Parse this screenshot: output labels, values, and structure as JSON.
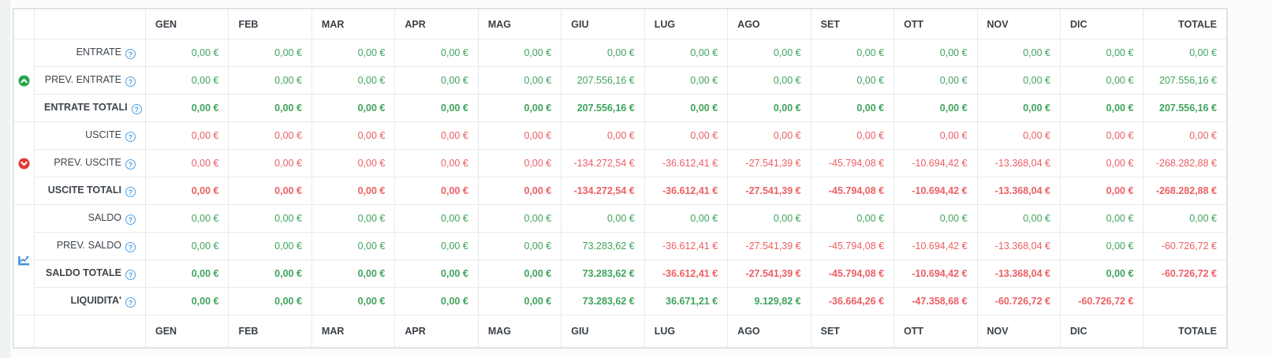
{
  "colors": {
    "positive": "#3fa45c",
    "negative": "#ec5f63",
    "section_up": "#2aa44e",
    "section_down": "#e23b3b",
    "chart_blue": "#3d8fd8",
    "help_blue": "#4b9fe8"
  },
  "columns": [
    "GEN",
    "FEB",
    "MAR",
    "APR",
    "MAG",
    "GIU",
    "LUG",
    "AGO",
    "SET",
    "OTT",
    "NOV",
    "DIC",
    "TOTALE"
  ],
  "help_symbol": "?",
  "sections": [
    {
      "name": "entrate",
      "icon": "arrow-up-circle",
      "rows": [
        {
          "label": "ENTRATE",
          "bold": false,
          "cells": [
            [
              "0,00 €",
              "p"
            ],
            [
              "0,00 €",
              "p"
            ],
            [
              "0,00 €",
              "p"
            ],
            [
              "0,00 €",
              "p"
            ],
            [
              "0,00 €",
              "p"
            ],
            [
              "0,00 €",
              "p"
            ],
            [
              "0,00 €",
              "p"
            ],
            [
              "0,00 €",
              "p"
            ],
            [
              "0,00 €",
              "p"
            ],
            [
              "0,00 €",
              "p"
            ],
            [
              "0,00 €",
              "p"
            ],
            [
              "0,00 €",
              "p"
            ],
            [
              "0,00 €",
              "p"
            ]
          ]
        },
        {
          "label": "PREV. ENTRATE",
          "bold": false,
          "cells": [
            [
              "0,00 €",
              "p"
            ],
            [
              "0,00 €",
              "p"
            ],
            [
              "0,00 €",
              "p"
            ],
            [
              "0,00 €",
              "p"
            ],
            [
              "0,00 €",
              "p"
            ],
            [
              "207.556,16 €",
              "p"
            ],
            [
              "0,00 €",
              "p"
            ],
            [
              "0,00 €",
              "p"
            ],
            [
              "0,00 €",
              "p"
            ],
            [
              "0,00 €",
              "p"
            ],
            [
              "0,00 €",
              "p"
            ],
            [
              "0,00 €",
              "p"
            ],
            [
              "207.556,16 €",
              "p"
            ]
          ]
        },
        {
          "label": "ENTRATE TOTALI",
          "bold": true,
          "cells": [
            [
              "0,00 €",
              "p"
            ],
            [
              "0,00 €",
              "p"
            ],
            [
              "0,00 €",
              "p"
            ],
            [
              "0,00 €",
              "p"
            ],
            [
              "0,00 €",
              "p"
            ],
            [
              "207.556,16 €",
              "p"
            ],
            [
              "0,00 €",
              "p"
            ],
            [
              "0,00 €",
              "p"
            ],
            [
              "0,00 €",
              "p"
            ],
            [
              "0,00 €",
              "p"
            ],
            [
              "0,00 €",
              "p"
            ],
            [
              "0,00 €",
              "p"
            ],
            [
              "207.556,16 €",
              "p"
            ]
          ]
        }
      ]
    },
    {
      "name": "uscite",
      "icon": "arrow-down-circle",
      "rows": [
        {
          "label": "USCITE",
          "bold": false,
          "cells": [
            [
              "0,00 €",
              "n"
            ],
            [
              "0,00 €",
              "n"
            ],
            [
              "0,00 €",
              "n"
            ],
            [
              "0,00 €",
              "n"
            ],
            [
              "0,00 €",
              "n"
            ],
            [
              "0,00 €",
              "n"
            ],
            [
              "0,00 €",
              "n"
            ],
            [
              "0,00 €",
              "n"
            ],
            [
              "0,00 €",
              "n"
            ],
            [
              "0,00 €",
              "n"
            ],
            [
              "0,00 €",
              "n"
            ],
            [
              "0,00 €",
              "n"
            ],
            [
              "0,00 €",
              "n"
            ]
          ]
        },
        {
          "label": "PREV. USCITE",
          "bold": false,
          "cells": [
            [
              "0,00 €",
              "n"
            ],
            [
              "0,00 €",
              "n"
            ],
            [
              "0,00 €",
              "n"
            ],
            [
              "0,00 €",
              "n"
            ],
            [
              "0,00 €",
              "n"
            ],
            [
              "-134.272,54 €",
              "n"
            ],
            [
              "-36.612,41 €",
              "n"
            ],
            [
              "-27.541,39 €",
              "n"
            ],
            [
              "-45.794,08 €",
              "n"
            ],
            [
              "-10.694,42 €",
              "n"
            ],
            [
              "-13.368,04 €",
              "n"
            ],
            [
              "0,00 €",
              "n"
            ],
            [
              "-268.282,88 €",
              "n"
            ]
          ]
        },
        {
          "label": "USCITE TOTALI",
          "bold": true,
          "cells": [
            [
              "0,00 €",
              "n"
            ],
            [
              "0,00 €",
              "n"
            ],
            [
              "0,00 €",
              "n"
            ],
            [
              "0,00 €",
              "n"
            ],
            [
              "0,00 €",
              "n"
            ],
            [
              "-134.272,54 €",
              "n"
            ],
            [
              "-36.612,41 €",
              "n"
            ],
            [
              "-27.541,39 €",
              "n"
            ],
            [
              "-45.794,08 €",
              "n"
            ],
            [
              "-10.694,42 €",
              "n"
            ],
            [
              "-13.368,04 €",
              "n"
            ],
            [
              "0,00 €",
              "n"
            ],
            [
              "-268.282,88 €",
              "n"
            ]
          ]
        }
      ]
    },
    {
      "name": "saldo",
      "icon": "chart-line",
      "rows": [
        {
          "label": "SALDO",
          "bold": false,
          "cells": [
            [
              "0,00 €",
              "p"
            ],
            [
              "0,00 €",
              "p"
            ],
            [
              "0,00 €",
              "p"
            ],
            [
              "0,00 €",
              "p"
            ],
            [
              "0,00 €",
              "p"
            ],
            [
              "0,00 €",
              "p"
            ],
            [
              "0,00 €",
              "p"
            ],
            [
              "0,00 €",
              "p"
            ],
            [
              "0,00 €",
              "p"
            ],
            [
              "0,00 €",
              "p"
            ],
            [
              "0,00 €",
              "p"
            ],
            [
              "0,00 €",
              "p"
            ],
            [
              "0,00 €",
              "p"
            ]
          ]
        },
        {
          "label": "PREV. SALDO",
          "bold": false,
          "cells": [
            [
              "0,00 €",
              "p"
            ],
            [
              "0,00 €",
              "p"
            ],
            [
              "0,00 €",
              "p"
            ],
            [
              "0,00 €",
              "p"
            ],
            [
              "0,00 €",
              "p"
            ],
            [
              "73.283,62 €",
              "p"
            ],
            [
              "-36.612,41 €",
              "n"
            ],
            [
              "-27.541,39 €",
              "n"
            ],
            [
              "-45.794,08 €",
              "n"
            ],
            [
              "-10.694,42 €",
              "n"
            ],
            [
              "-13.368,04 €",
              "n"
            ],
            [
              "0,00 €",
              "p"
            ],
            [
              "-60.726,72 €",
              "n"
            ]
          ]
        },
        {
          "label": "SALDO TOTALE",
          "bold": true,
          "cells": [
            [
              "0,00 €",
              "p"
            ],
            [
              "0,00 €",
              "p"
            ],
            [
              "0,00 €",
              "p"
            ],
            [
              "0,00 €",
              "p"
            ],
            [
              "0,00 €",
              "p"
            ],
            [
              "73.283,62 €",
              "p"
            ],
            [
              "-36.612,41 €",
              "n"
            ],
            [
              "-27.541,39 €",
              "n"
            ],
            [
              "-45.794,08 €",
              "n"
            ],
            [
              "-10.694,42 €",
              "n"
            ],
            [
              "-13.368,04 €",
              "n"
            ],
            [
              "0,00 €",
              "p"
            ],
            [
              "-60.726,72 €",
              "n"
            ]
          ]
        },
        {
          "label": "LIQUIDITA'",
          "bold": true,
          "cells": [
            [
              "0,00 €",
              "p"
            ],
            [
              "0,00 €",
              "p"
            ],
            [
              "0,00 €",
              "p"
            ],
            [
              "0,00 €",
              "p"
            ],
            [
              "0,00 €",
              "p"
            ],
            [
              "73.283,62 €",
              "p"
            ],
            [
              "36.671,21 €",
              "p"
            ],
            [
              "9.129,82 €",
              "p"
            ],
            [
              "-36.664,26 €",
              "n"
            ],
            [
              "-47.358,68 €",
              "n"
            ],
            [
              "-60.726,72 €",
              "n"
            ],
            [
              "-60.726,72 €",
              "n"
            ],
            [
              "",
              ""
            ]
          ]
        }
      ]
    }
  ]
}
